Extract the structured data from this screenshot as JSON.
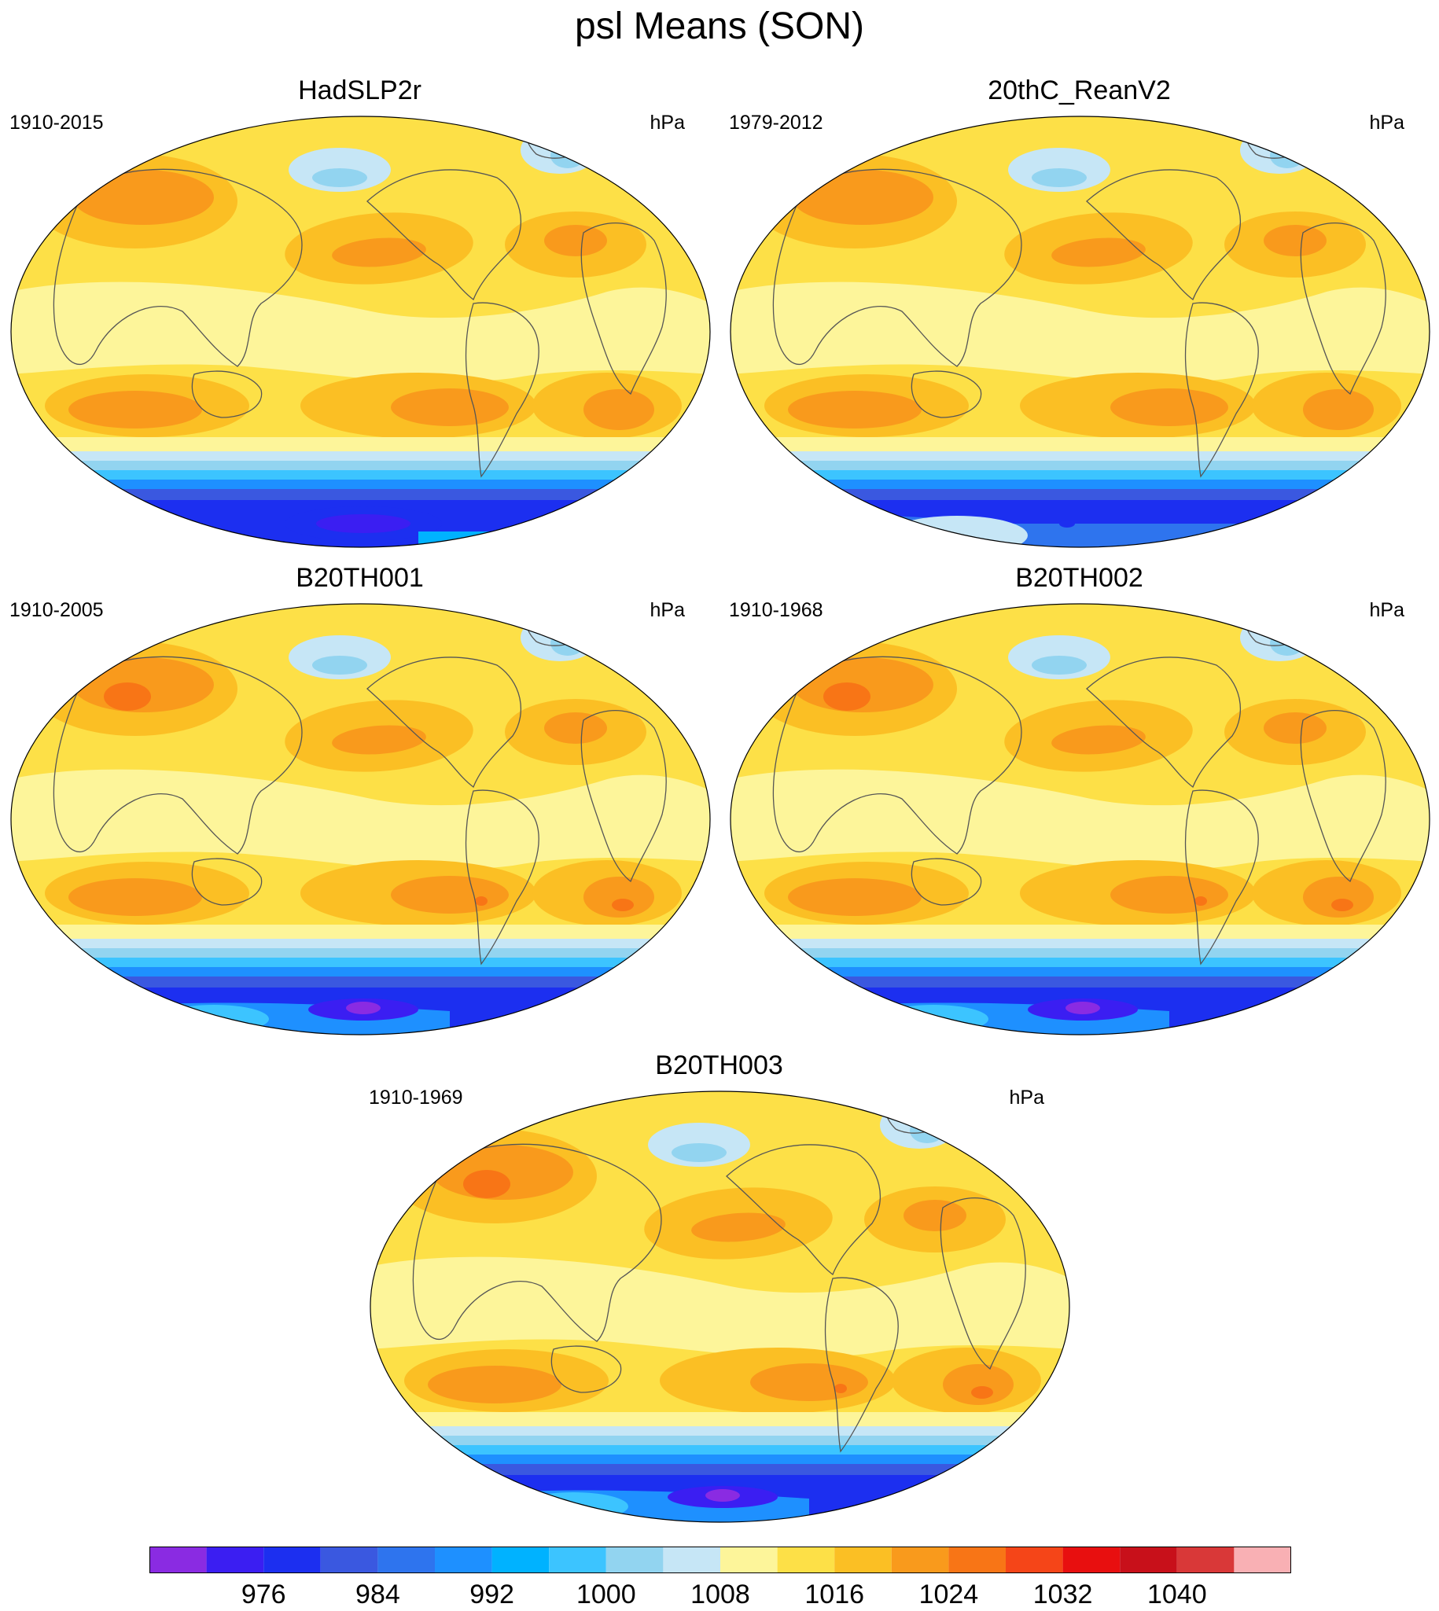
{
  "title": "psl Means (SON)",
  "panels": [
    {
      "title": "HadSLP2r",
      "left_label": "1910-2015",
      "right_label": "hPa",
      "variant": "obs"
    },
    {
      "title": "20thC_ReanV2",
      "left_label": "1979-2012",
      "right_label": "hPa",
      "variant": "rean"
    },
    {
      "title": "B20TH001",
      "left_label": "1910-2005",
      "right_label": "hPa",
      "variant": "model"
    },
    {
      "title": "B20TH002",
      "left_label": "1910-1968",
      "right_label": "hPa",
      "variant": "model"
    },
    {
      "title": "B20TH003",
      "left_label": "1910-1969",
      "right_label": "hPa",
      "variant": "model"
    }
  ],
  "chart_data": {
    "type": "heatmap",
    "projection": "Robinson (global)",
    "variable": "psl",
    "units": "hPa",
    "colorbar": {
      "levels": [
        972,
        976,
        980,
        984,
        988,
        992,
        996,
        1000,
        1004,
        1008,
        1012,
        1016,
        1020,
        1024,
        1028,
        1032,
        1036,
        1040,
        1044
      ],
      "tick_labels": [
        "976",
        "984",
        "992",
        "1000",
        "1008",
        "1016",
        "1024",
        "1032",
        "1040"
      ],
      "colors": [
        "#8a2be2",
        "#3b1ef2",
        "#1c2ff0",
        "#3a58e0",
        "#2e74ee",
        "#1e90ff",
        "#00b2ff",
        "#3cc4ff",
        "#92d4f0",
        "#c6e6f6",
        "#fdf59a",
        "#fde047",
        "#fbbf24",
        "#f99a1c",
        "#f87516",
        "#f54518",
        "#e80f0f",
        "#c8101a",
        "#d93838",
        "#f9b0b4"
      ]
    }
  }
}
